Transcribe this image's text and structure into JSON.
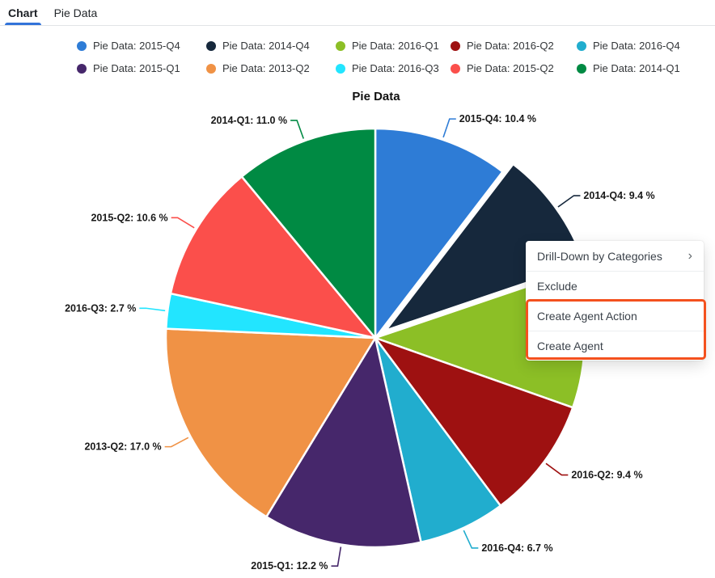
{
  "tabs": [
    {
      "label": "Chart",
      "active": true
    },
    {
      "label": "Pie Data",
      "active": false
    }
  ],
  "accent_colors": {
    "tab_underline": "#3273d9",
    "menu_highlight": "#f4511e"
  },
  "chart_data": {
    "type": "pie",
    "title": "Pie Data",
    "series_name": "Pie Data",
    "legend_position": "top",
    "start_angle_deg": 0,
    "slices": [
      {
        "name": "2015-Q4",
        "value": 10.4,
        "label": "2015-Q4: 10.4 %",
        "legend_label": "Pie Data: 2015-Q4",
        "color": "#2e7cd6",
        "exploded": false
      },
      {
        "name": "2014-Q4",
        "value": 9.4,
        "label": "2014-Q4: 9.4 %",
        "legend_label": "Pie Data: 2014-Q4",
        "color": "#16283c",
        "exploded": true
      },
      {
        "name": "2016-Q1",
        "value": 10.6,
        "label": "2016-Q1: 10.6 %",
        "legend_label": "Pie Data: 2016-Q1",
        "color": "#8cbf26",
        "exploded": false
      },
      {
        "name": "2016-Q2",
        "value": 9.4,
        "label": "2016-Q2: 9.4 %",
        "legend_label": "Pie Data: 2016-Q2",
        "color": "#9e1111",
        "exploded": false
      },
      {
        "name": "2016-Q4",
        "value": 6.7,
        "label": "2016-Q4: 6.7 %",
        "legend_label": "Pie Data: 2016-Q4",
        "color": "#21adce",
        "exploded": false
      },
      {
        "name": "2015-Q1",
        "value": 12.2,
        "label": "2015-Q1: 12.2 %",
        "legend_label": "Pie Data: 2015-Q1",
        "color": "#46276b",
        "exploded": false
      },
      {
        "name": "2013-Q2",
        "value": 17.0,
        "label": "2013-Q2: 17.0 %",
        "legend_label": "Pie Data: 2013-Q2",
        "color": "#f09245",
        "exploded": false
      },
      {
        "name": "2016-Q3",
        "value": 2.7,
        "label": "2016-Q3: 2.7 %",
        "legend_label": "Pie Data: 2016-Q3",
        "color": "#22e5ff",
        "exploded": false
      },
      {
        "name": "2015-Q2",
        "value": 10.6,
        "label": "2015-Q2: 10.6 %",
        "legend_label": "Pie Data: 2015-Q2",
        "color": "#fb4f4b",
        "exploded": false
      },
      {
        "name": "2014-Q1",
        "value": 11.0,
        "label": "2014-Q1: 11.0 %",
        "legend_label": "Pie Data: 2014-Q1",
        "color": "#008a43",
        "exploded": false
      }
    ]
  },
  "context_menu": {
    "chevron": "›",
    "items": [
      {
        "label": "Drill-Down by Categories",
        "has_submenu": true,
        "highlighted": false
      },
      {
        "label": "Exclude",
        "has_submenu": false,
        "highlighted": false
      },
      {
        "label": "Create Agent Action",
        "has_submenu": false,
        "highlighted": true
      },
      {
        "label": "Create Agent",
        "has_submenu": false,
        "highlighted": true
      }
    ]
  }
}
